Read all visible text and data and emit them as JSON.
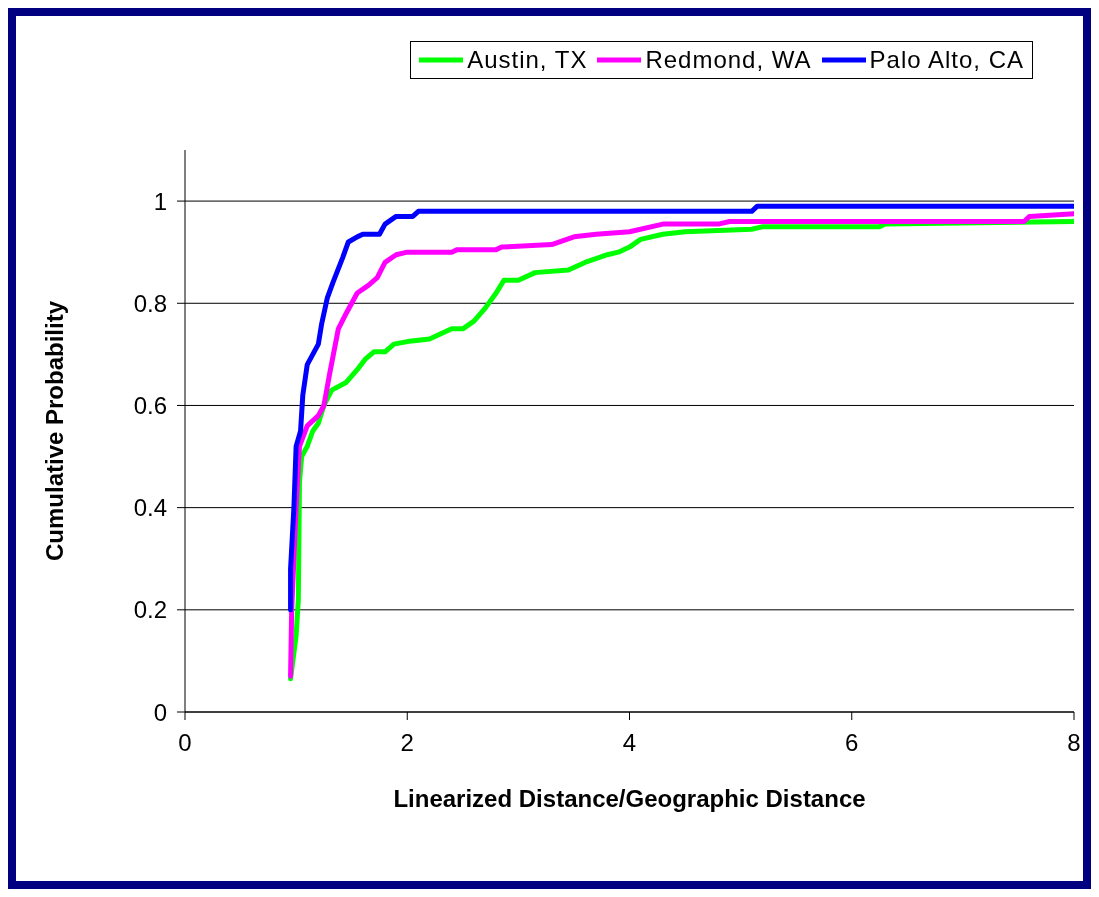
{
  "chart_data": {
    "type": "line",
    "xlabel": "Linearized Distance/Geographic Distance",
    "ylabel": "Cumulative Probability",
    "xlim": [
      0,
      8
    ],
    "xticks": [
      0,
      2,
      4,
      6,
      8
    ],
    "ylim": [
      0,
      1.1
    ],
    "yticks": [
      0,
      0.2,
      0.4,
      0.6,
      0.8,
      1
    ],
    "grid": "y",
    "legend": "top",
    "marker": "none",
    "line_style": "solid",
    "series": [
      {
        "name": "Austin, TX",
        "color": "#00ff00",
        "x": [
          0.95,
          1.0,
          1.02,
          1.03,
          1.05,
          1.1,
          1.15,
          1.2,
          1.25,
          1.32,
          1.45,
          1.55,
          1.62,
          1.7,
          1.8,
          1.88,
          2.0,
          2.2,
          2.4,
          2.5,
          2.6,
          2.7,
          2.8,
          2.87,
          3.0,
          3.15,
          3.45,
          3.6,
          3.8,
          3.9,
          4.0,
          4.1,
          4.3,
          4.5,
          5.1,
          5.2,
          6.25,
          6.3,
          8
        ],
        "values": [
          0.065,
          0.15,
          0.22,
          0.45,
          0.5,
          0.52,
          0.55,
          0.565,
          0.6,
          0.63,
          0.645,
          0.67,
          0.69,
          0.705,
          0.705,
          0.72,
          0.725,
          0.73,
          0.75,
          0.75,
          0.765,
          0.79,
          0.82,
          0.845,
          0.845,
          0.86,
          0.865,
          0.88,
          0.895,
          0.9,
          0.91,
          0.925,
          0.935,
          0.94,
          0.945,
          0.95,
          0.95,
          0.955,
          0.96
        ]
      },
      {
        "name": "Redmond, WA",
        "color": "#ff00ff",
        "x": [
          0.95,
          0.96,
          1.0,
          1.03,
          1.1,
          1.2,
          1.25,
          1.3,
          1.38,
          1.45,
          1.55,
          1.65,
          1.73,
          1.8,
          1.9,
          2.0,
          2.4,
          2.45,
          2.8,
          2.85,
          3.3,
          3.5,
          3.7,
          4.0,
          4.3,
          4.8,
          4.9,
          7.55,
          7.6,
          8
        ],
        "values": [
          0.07,
          0.2,
          0.4,
          0.52,
          0.56,
          0.58,
          0.6,
          0.66,
          0.75,
          0.78,
          0.82,
          0.835,
          0.85,
          0.88,
          0.895,
          0.9,
          0.9,
          0.905,
          0.905,
          0.91,
          0.915,
          0.93,
          0.935,
          0.94,
          0.955,
          0.955,
          0.96,
          0.96,
          0.97,
          0.975
        ]
      },
      {
        "name": "Palo Alto, CA",
        "color": "#0000ff",
        "x": [
          0.95,
          0.95,
          0.98,
          1.0,
          1.04,
          1.06,
          1.1,
          1.2,
          1.23,
          1.28,
          1.33,
          1.42,
          1.47,
          1.55,
          1.6,
          1.75,
          1.8,
          1.9,
          2.05,
          2.1,
          5.1,
          5.15,
          8
        ],
        "values": [
          0.2,
          0.28,
          0.4,
          0.52,
          0.55,
          0.62,
          0.68,
          0.72,
          0.76,
          0.81,
          0.84,
          0.89,
          0.92,
          0.93,
          0.935,
          0.935,
          0.955,
          0.97,
          0.97,
          0.98,
          0.98,
          0.99,
          0.99
        ]
      }
    ]
  }
}
